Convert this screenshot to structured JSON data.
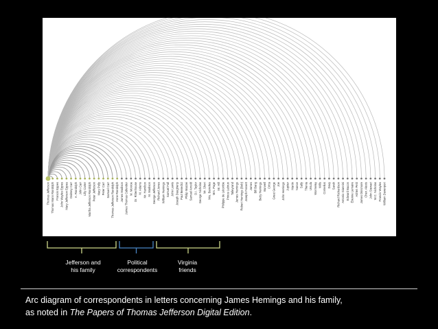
{
  "diagram": {
    "type": "arc",
    "names": [
      "Thomas Jefferson",
      "Thomas Mann Randolph",
      "Francis Eppes",
      "John Wayles Eppes",
      "Mary Jefferson Eppes",
      "Dabney Carr",
      "A. Randolph",
      "John Carr",
      "Lilly Carter",
      "Martha Jefferson Randolph",
      "Peter Jefferson",
      "Mary Polly",
      "Peter Carr",
      "Samuel Carr",
      "Thomas Jefferson Randolph",
      "Anne Randolph",
      "James Madison",
      "James Thomas Callender",
      "M. Monroe",
      "Dr. Rittenhouse",
      "M. Adams",
      "Mr. Hamilton",
      "M. Madison",
      "George Jefferson",
      "Richard Jones",
      "William Hemings",
      "Samuel Fall",
      "John Lewis",
      "Joseph Daugherty",
      "Paul Benedict",
      "Philip Mazzei",
      "Samuel Arnold",
      "D.I. Taylor",
      "George Nicholas",
      "Mr. Short",
      "Mrs. Barrelies",
      "Mrs. Page",
      "Mr. Hill",
      "Philippe de Létombe",
      "Prince Lebrun",
      "Talleyrand",
      "James Hemings",
      "Robert Hemings (Bob)",
      "Joseph Fossett",
      "James",
      "Bill Bang",
      "Betty Hemings",
      "Burwell",
      "Critta",
      "Great George",
      "Joe",
      "John Hemings",
      "Jupiter",
      "Martin",
      "Nance",
      "Sally",
      "Thenia",
      "Ursula",
      "Wormeley",
      "Wills",
      "Cornelius",
      "Davy",
      "Sarah",
      "Richard Richardson",
      "Antonio Giannini",
      "Edward Bacon",
      "Étienne Lemaire",
      "Adrien Petit",
      "James Dinsmore",
      "Chev. Alexis",
      "John Stewart",
      "W.C. Nicholas",
      "Francis Wayles",
      "William Davenport"
    ],
    "groups": [
      {
        "label": "Jefferson and\nhis family",
        "color": "#cfd98a"
      },
      {
        "label": "Political\ncorrespondents",
        "color": "#4a86c5"
      },
      {
        "label": "Virginia\nfriends",
        "color": "#cfd98a"
      }
    ],
    "caption_line1": "Arc diagram of correspondents in letters concerning James Hemings and his family,",
    "caption_line2_prefix": "as noted in ",
    "caption_line2_title": "The Papers of Thomas Jefferson Digital Edition",
    "caption_line2_suffix": "."
  }
}
